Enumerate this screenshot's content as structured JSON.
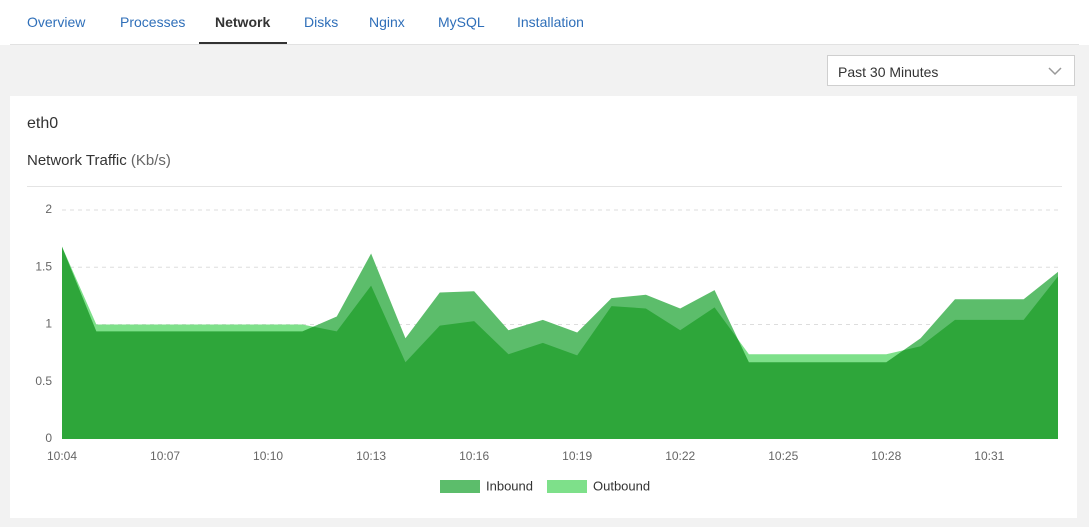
{
  "tabs": [
    "Overview",
    "Processes",
    "Network",
    "Disks",
    "Nginx",
    "MySQL",
    "Installation"
  ],
  "time_range": "Past 30 Minutes",
  "panel": {
    "title": "eth0"
  },
  "chart_data": {
    "type": "area",
    "title": "Network Traffic",
    "unit": "(Kb/s)",
    "categories": [
      "10:04",
      null,
      null,
      "10:07",
      null,
      null,
      "10:10",
      null,
      null,
      "10:13",
      null,
      null,
      "10:16",
      null,
      null,
      "10:19",
      null,
      null,
      "10:22",
      null,
      null,
      "10:25",
      null,
      null,
      "10:28",
      null,
      null,
      "10:31",
      null,
      null
    ],
    "series": [
      {
        "name": "Inbound",
        "color": "#5cbd6b",
        "values": [
          1.68,
          0.94,
          0.94,
          0.94,
          0.94,
          0.94,
          0.94,
          0.94,
          1.07,
          1.62,
          0.88,
          1.28,
          1.29,
          0.95,
          1.04,
          0.93,
          1.23,
          1.26,
          1.14,
          1.3,
          0.67,
          0.67,
          0.67,
          0.67,
          0.67,
          0.88,
          1.22,
          1.22,
          1.22,
          1.46
        ]
      },
      {
        "name": "Outbound",
        "color": "#7ee08a",
        "values": [
          1.68,
          1.0,
          1.0,
          1.0,
          1.0,
          1.0,
          1.0,
          1.0,
          0.94,
          1.34,
          0.67,
          0.99,
          1.03,
          0.74,
          0.84,
          0.73,
          1.16,
          1.14,
          0.95,
          1.15,
          0.74,
          0.74,
          0.74,
          0.74,
          0.74,
          0.81,
          1.04,
          1.04,
          1.04,
          1.42
        ]
      }
    ],
    "ylim": [
      0,
      2
    ],
    "yticks": [
      0,
      0.5,
      1,
      1.5,
      2
    ],
    "grid": true,
    "legend": "bottom"
  }
}
